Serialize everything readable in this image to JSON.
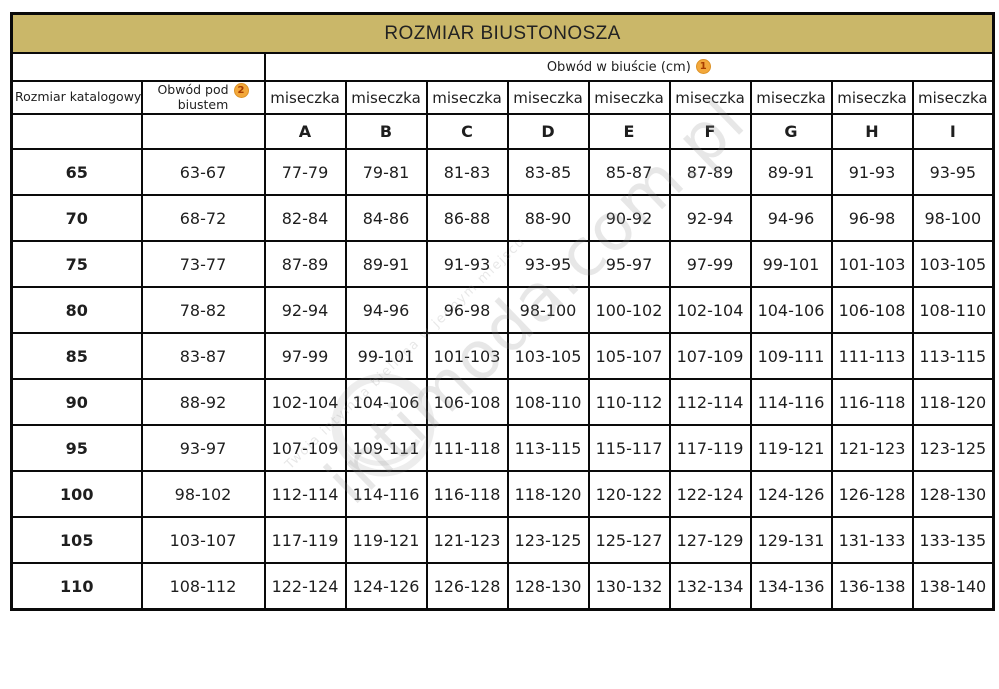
{
  "title": "ROZMIAR BIUSTONOSZA",
  "header": {
    "bust_circumference_label": "Obwód w biuście (cm)",
    "bust_badge": "1",
    "catalog_size_label": "Rozmiar katalogowy",
    "underbust_label_line1": "Obwód pod",
    "underbust_label_line2": "biustem",
    "underbust_badge": "2",
    "cup_label": "miseczka",
    "cup_letters": [
      "A",
      "B",
      "C",
      "D",
      "E",
      "F",
      "G",
      "H",
      "I"
    ]
  },
  "rows": [
    {
      "size": "65",
      "underbust": "63-67",
      "cups": [
        "77-79",
        "79-81",
        "81-83",
        "83-85",
        "85-87",
        "87-89",
        "89-91",
        "91-93",
        "93-95"
      ]
    },
    {
      "size": "70",
      "underbust": "68-72",
      "cups": [
        "82-84",
        "84-86",
        "86-88",
        "88-90",
        "90-92",
        "92-94",
        "94-96",
        "96-98",
        "98-100"
      ]
    },
    {
      "size": "75",
      "underbust": "73-77",
      "cups": [
        "87-89",
        "89-91",
        "91-93",
        "93-95",
        "95-97",
        "97-99",
        "99-101",
        "101-103",
        "103-105"
      ]
    },
    {
      "size": "80",
      "underbust": "78-82",
      "cups": [
        "92-94",
        "94-96",
        "96-98",
        "98-100",
        "100-102",
        "102-104",
        "104-106",
        "106-108",
        "108-110"
      ]
    },
    {
      "size": "85",
      "underbust": "83-87",
      "cups": [
        "97-99",
        "99-101",
        "101-103",
        "103-105",
        "105-107",
        "107-109",
        "109-111",
        "111-113",
        "113-115"
      ]
    },
    {
      "size": "90",
      "underbust": "88-92",
      "cups": [
        "102-104",
        "104-106",
        "106-108",
        "108-110",
        "110-112",
        "112-114",
        "114-116",
        "116-118",
        "118-120"
      ]
    },
    {
      "size": "95",
      "underbust": "93-97",
      "cups": [
        "107-109",
        "109-111",
        "111-118",
        "113-115",
        "115-117",
        "117-119",
        "119-121",
        "121-123",
        "123-125"
      ]
    },
    {
      "size": "100",
      "underbust": "98-102",
      "cups": [
        "112-114",
        "114-116",
        "116-118",
        "118-120",
        "120-122",
        "122-124",
        "124-126",
        "126-128",
        "128-130"
      ]
    },
    {
      "size": "105",
      "underbust": "103-107",
      "cups": [
        "117-119",
        "119-121",
        "121-123",
        "123-125",
        "125-127",
        "127-129",
        "129-131",
        "131-133",
        "133-135"
      ]
    },
    {
      "size": "110",
      "underbust": "108-112",
      "cups": [
        "122-124",
        "124-126",
        "126-128",
        "128-130",
        "130-132",
        "132-134",
        "134-136",
        "136-138",
        "138-140"
      ]
    }
  ],
  "watermark": {
    "main": "intimoda.com.pl",
    "tagline": "Twoja intymna bielizna w jednym miejscu"
  },
  "colors": {
    "title_bg": "#cab769",
    "border": "#0a0a0a",
    "badge_bg": "#f3a83b",
    "badge_text": "#a83c00"
  }
}
